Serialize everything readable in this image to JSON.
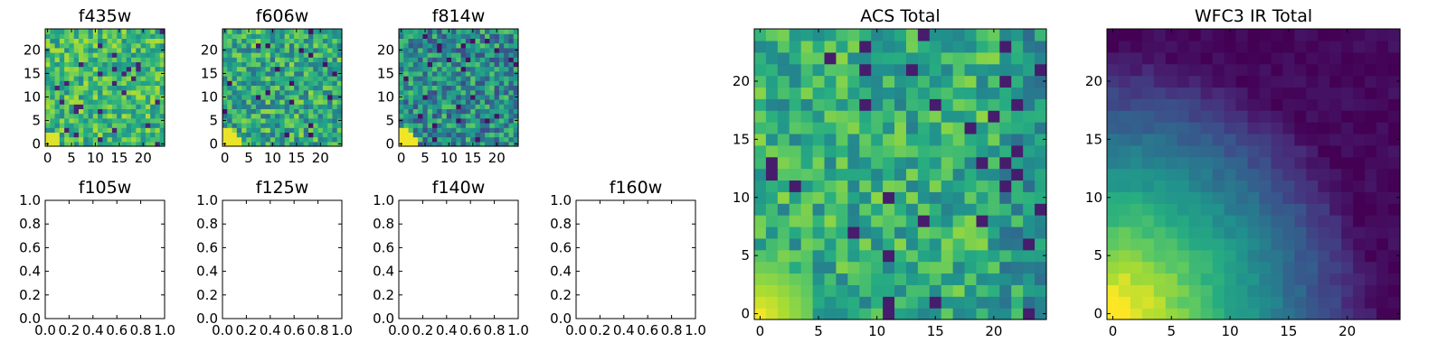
{
  "chart_data": [
    {
      "id": "f435w",
      "type": "heatmap",
      "title": "f435w",
      "xticks": [
        0,
        5,
        10,
        15,
        20
      ],
      "yticks": [
        0,
        5,
        10,
        15,
        20
      ],
      "xlim": [
        -0.5,
        24.5
      ],
      "ylim": [
        -0.5,
        24.5
      ],
      "grid": false,
      "colormap": "viridis",
      "pattern": "bright-uniform",
      "seed": 11
    },
    {
      "id": "f606w",
      "type": "heatmap",
      "title": "f606w",
      "xticks": [
        0,
        5,
        10,
        15,
        20
      ],
      "yticks": [
        0,
        5,
        10,
        15,
        20
      ],
      "xlim": [
        -0.5,
        24.5
      ],
      "ylim": [
        -0.5,
        24.5
      ],
      "grid": false,
      "colormap": "viridis",
      "pattern": "mid-uniform",
      "seed": 23
    },
    {
      "id": "f814w",
      "type": "heatmap",
      "title": "f814w",
      "xticks": [
        0,
        5,
        10,
        15,
        20
      ],
      "yticks": [
        0,
        5,
        10,
        15,
        20
      ],
      "xlim": [
        -0.5,
        24.5
      ],
      "ylim": [
        -0.5,
        24.5
      ],
      "grid": false,
      "colormap": "viridis",
      "pattern": "mid-uniform-darker",
      "seed": 37
    },
    {
      "id": "f105w",
      "type": "empty",
      "title": "f105w",
      "xticks": [
        "0.0",
        "0.2",
        "0.4",
        "0.6",
        "0.8",
        "1.0"
      ],
      "yticks": [
        "0.0",
        "0.2",
        "0.4",
        "0.6",
        "0.8",
        "1.0"
      ],
      "xlim": [
        0,
        1
      ],
      "ylim": [
        0,
        1
      ]
    },
    {
      "id": "f125w",
      "type": "empty",
      "title": "f125w",
      "xticks": [
        "0.0",
        "0.2",
        "0.4",
        "0.6",
        "0.8",
        "1.0"
      ],
      "yticks": [
        "0.0",
        "0.2",
        "0.4",
        "0.6",
        "0.8",
        "1.0"
      ],
      "xlim": [
        0,
        1
      ],
      "ylim": [
        0,
        1
      ]
    },
    {
      "id": "f140w",
      "type": "empty",
      "title": "f140w",
      "xticks": [
        "0.0",
        "0.2",
        "0.4",
        "0.6",
        "0.8",
        "1.0"
      ],
      "yticks": [
        "0.0",
        "0.2",
        "0.4",
        "0.6",
        "0.8",
        "1.0"
      ],
      "xlim": [
        0,
        1
      ],
      "ylim": [
        0,
        1
      ]
    },
    {
      "id": "f160w",
      "type": "empty",
      "title": "f160w",
      "xticks": [
        "0.0",
        "0.2",
        "0.4",
        "0.6",
        "0.8",
        "1.0"
      ],
      "yticks": [
        "0.0",
        "0.2",
        "0.4",
        "0.6",
        "0.8",
        "1.0"
      ],
      "xlim": [
        0,
        1
      ],
      "ylim": [
        0,
        1
      ]
    },
    {
      "id": "acs_total",
      "type": "heatmap",
      "title": "ACS Total",
      "xticks": [
        0,
        5,
        10,
        15,
        20
      ],
      "yticks": [
        0,
        5,
        10,
        15,
        20
      ],
      "xlim": [
        -0.5,
        24.5
      ],
      "ylim": [
        -0.5,
        24.5
      ],
      "grid": false,
      "colormap": "viridis",
      "pattern": "acs-total",
      "seed": 53
    },
    {
      "id": "wfc3_ir_total",
      "type": "heatmap",
      "title": "WFC3 IR Total",
      "xticks": [
        0,
        5,
        10,
        15,
        20
      ],
      "yticks": [
        0,
        5,
        10,
        15,
        20
      ],
      "xlim": [
        -0.5,
        24.5
      ],
      "ylim": [
        -0.5,
        24.5
      ],
      "grid": false,
      "colormap": "viridis",
      "pattern": "ir-gradient",
      "seed": 71
    }
  ]
}
